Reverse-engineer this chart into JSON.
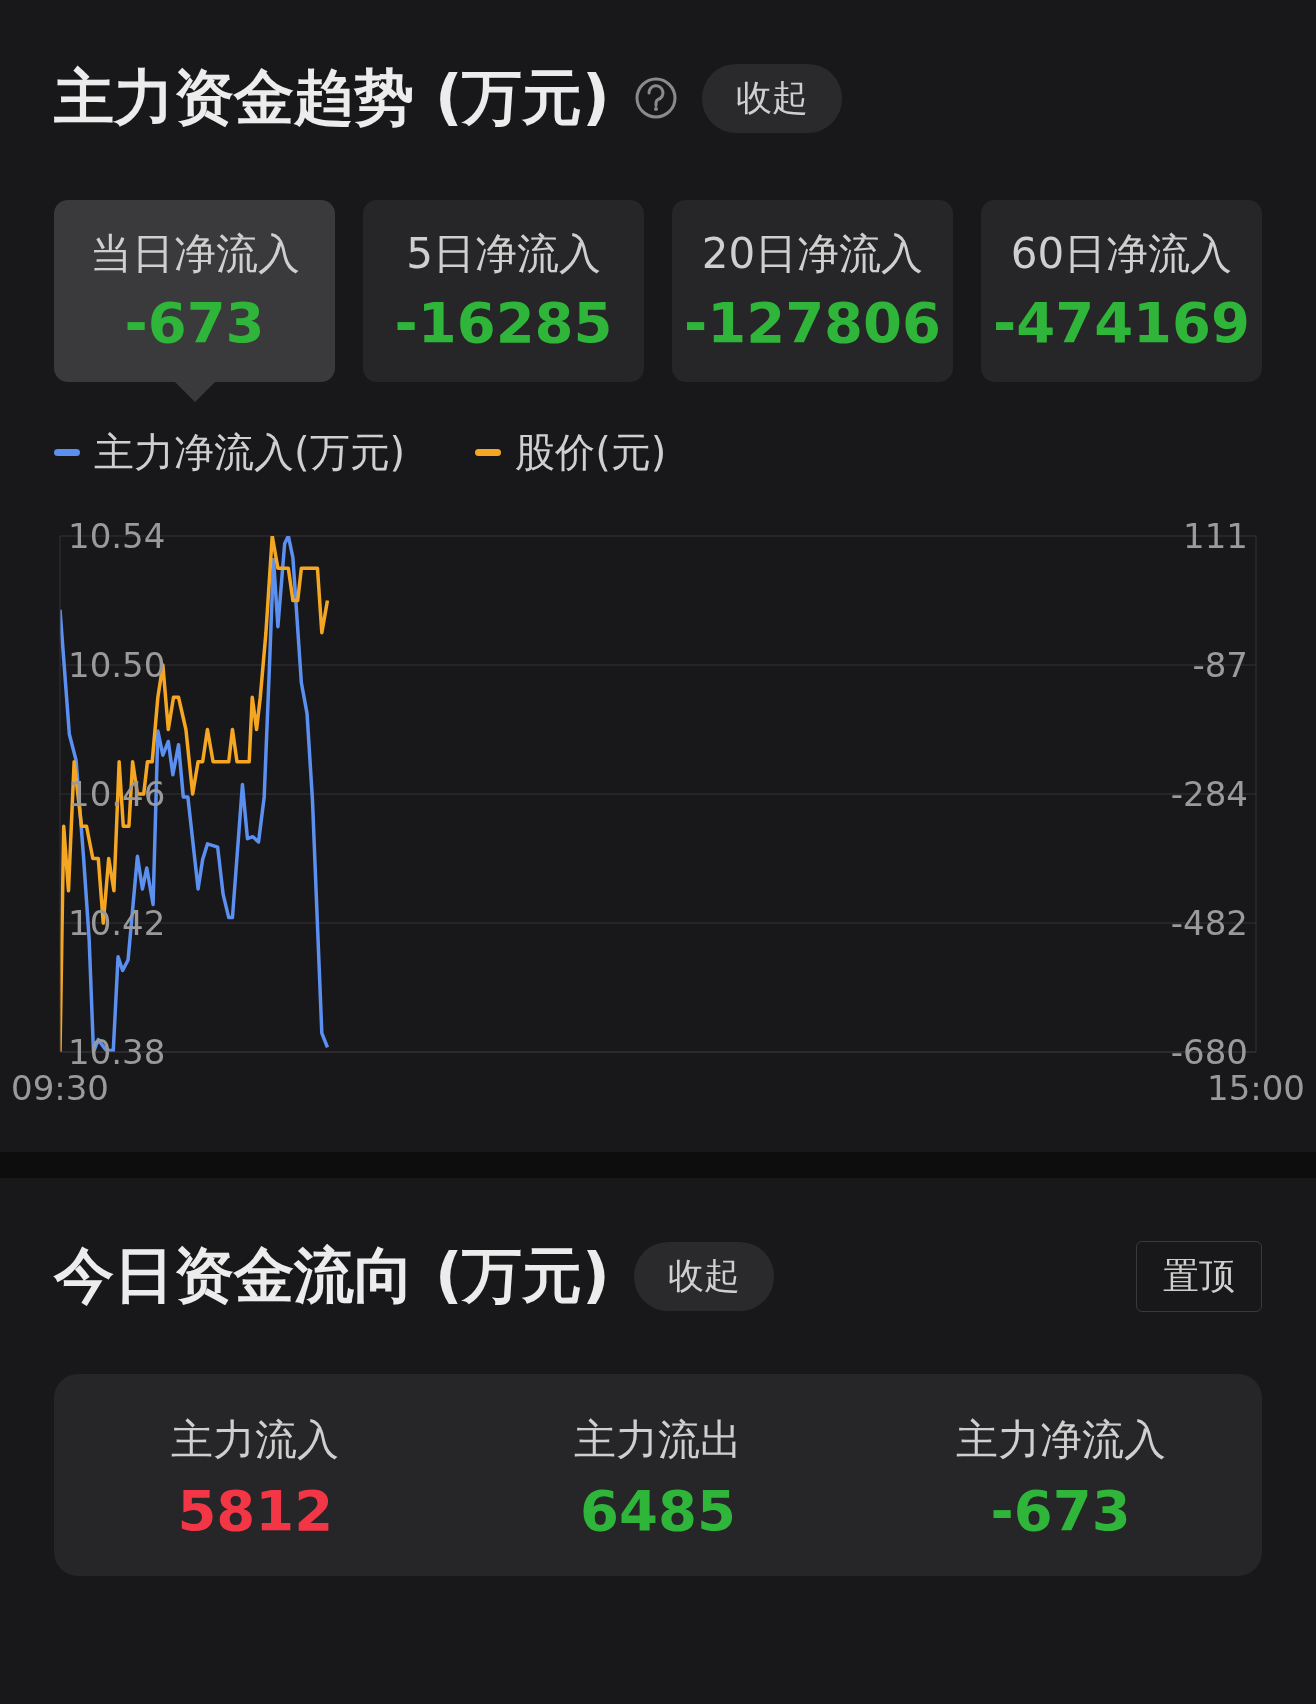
{
  "chart_data": [
    {
      "type": "other",
      "title": "主力资金趋势 (万元)",
      "annotations": [
        "收起"
      ],
      "categories": [
        "当日净流入",
        "5日净流入",
        "20日净流入",
        "60日净流入"
      ],
      "values": [
        -673,
        -16285,
        -127806,
        -474169
      ],
      "data_labels": true
    },
    {
      "type": "line",
      "legend": "top left",
      "grid": "y",
      "marker": "none",
      "line_style": "solid",
      "xlim": [
        9.5,
        15
      ],
      "xticks": [
        {
          "value": 9.5,
          "label": "09:30"
        },
        {
          "value": 15,
          "label": "15:00"
        }
      ],
      "ylim": [
        10.38,
        10.54
      ],
      "yticks": [
        {
          "value": 10.38,
          "label": "10.38"
        },
        {
          "value": 10.42,
          "label": "10.42"
        },
        {
          "value": 10.46,
          "label": "10.46"
        },
        {
          "value": 10.5,
          "label": "10.50"
        },
        {
          "value": 10.54,
          "label": "10.54"
        }
      ],
      "y2lim": [
        -680,
        111
      ],
      "y2ticks": [
        -680,
        -482,
        -284,
        -87,
        111
      ],
      "series": [
        {
          "name": "主力净流入(万元)",
          "color": "#5b8ff0",
          "axis": "y2",
          "x": [
            9.5,
            9.543,
            9.574,
            9.608,
            9.634,
            9.654,
            9.676,
            9.711,
            9.745,
            9.767,
            9.788,
            9.813,
            9.856,
            9.879,
            9.899,
            9.928,
            9.95,
            9.973,
            9.998,
            10.019,
            10.045,
            10.067,
            10.088,
            10.135,
            10.156,
            10.178,
            10.225,
            10.25,
            10.276,
            10.293,
            10.339,
            10.362,
            10.387,
            10.413,
            10.439,
            10.464,
            10.482,
            10.502,
            10.533,
            10.55,
            10.571,
            10.61,
            10.636,
            10.661,
            10.704,
            10.73
          ],
          "values": [
            -2,
            -193,
            -233,
            -380,
            -507,
            -680,
            -661,
            -677,
            -678,
            -534,
            -555,
            -539,
            -380,
            -430,
            -398,
            -454,
            -188,
            -225,
            -204,
            -255,
            -209,
            -289,
            -289,
            -430,
            -385,
            -361,
            -366,
            -438,
            -474,
            -474,
            -270,
            -353,
            -350,
            -358,
            -289,
            -82,
            75,
            -28,
            99,
            111,
            78,
            -114,
            -161,
            -294,
            -651,
            -673
          ]
        },
        {
          "name": "股价(元)",
          "color": "#f5a623",
          "axis": "y",
          "x": [
            9.5,
            9.517,
            9.539,
            9.565,
            9.599,
            9.622,
            9.651,
            9.676,
            9.699,
            9.724,
            9.748,
            9.772,
            9.791,
            9.817,
            9.834,
            9.856,
            9.885,
            9.902,
            9.924,
            9.95,
            9.973,
            9.998,
            10.022,
            10.045,
            10.079,
            10.11,
            10.135,
            10.156,
            10.178,
            10.204,
            10.276,
            10.293,
            10.314,
            10.37,
            10.384,
            10.404,
            10.421,
            10.447,
            10.476,
            10.502,
            10.55,
            10.571,
            10.593,
            10.61,
            10.684,
            10.704,
            10.73
          ],
          "values": [
            10.38,
            10.45,
            10.43,
            10.47,
            10.45,
            10.45,
            10.44,
            10.44,
            10.42,
            10.44,
            10.43,
            10.47,
            10.45,
            10.45,
            10.47,
            10.46,
            10.46,
            10.47,
            10.47,
            10.49,
            10.5,
            10.48,
            10.49,
            10.49,
            10.48,
            10.46,
            10.47,
            10.47,
            10.48,
            10.47,
            10.47,
            10.48,
            10.47,
            10.47,
            10.49,
            10.48,
            10.49,
            10.51,
            10.54,
            10.53,
            10.53,
            10.52,
            10.52,
            10.53,
            10.53,
            10.51,
            10.52
          ]
        }
      ]
    },
    {
      "type": "other",
      "title": "今日资金流向 (万元)",
      "annotations": [
        "收起",
        "置顶"
      ],
      "categories": [
        "主力流入",
        "主力流出",
        "主力净流入"
      ],
      "values": [
        5812,
        6485,
        -673
      ],
      "data_labels": true
    }
  ]
}
